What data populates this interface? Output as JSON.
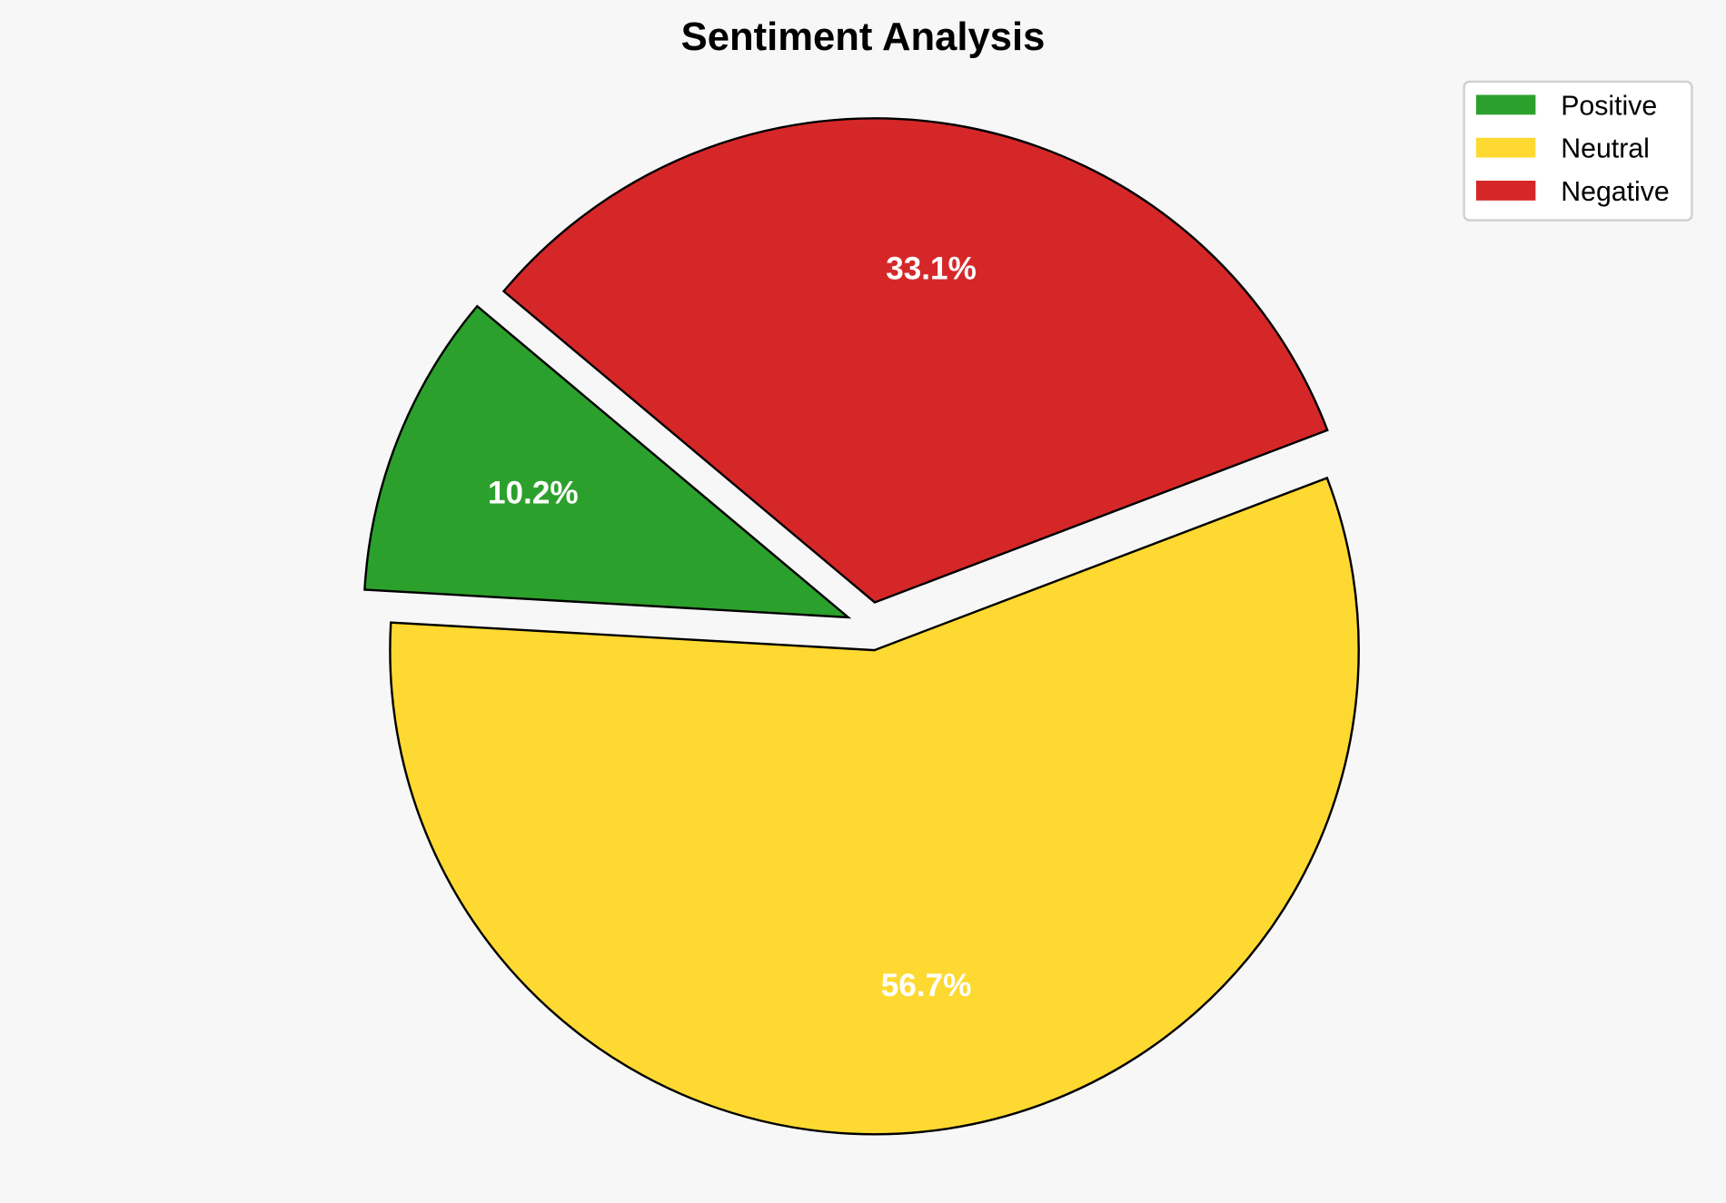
{
  "chart_data": {
    "type": "pie",
    "title": "Sentiment Analysis",
    "labels": [
      "Positive",
      "Neutral",
      "Negative"
    ],
    "values": [
      10.2,
      56.7,
      33.1
    ],
    "pct_labels": [
      "10.2%",
      "56.7%",
      "33.1%"
    ],
    "colors": [
      "#2ca02c",
      "#fed931",
      "#d62728"
    ],
    "start_angle_deg": 140,
    "exploded": [
      true,
      true,
      true
    ],
    "edge_color": "#000000",
    "legend_position": "top-right"
  }
}
